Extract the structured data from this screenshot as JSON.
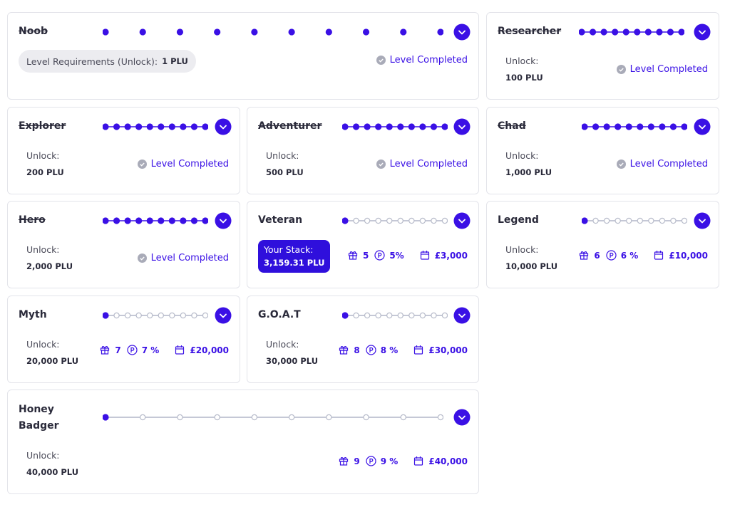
{
  "cards": [
    {
      "title": "Noob",
      "unlock_label": "Level Requirements (Unlock):",
      "unlock_value": "1 PLU",
      "status": "Level Completed"
    },
    {
      "title": "Researcher",
      "unlock_label": "Unlock:",
      "unlock_value": "100 PLU",
      "status": "Level Completed"
    },
    {
      "title": "Explorer",
      "unlock_label": "Unlock:",
      "unlock_value": "200 PLU",
      "status": "Level Completed"
    },
    {
      "title": "Adventurer",
      "unlock_label": "Unlock:",
      "unlock_value": "500 PLU",
      "status": "Level Completed"
    },
    {
      "title": "Chad",
      "unlock_label": "Unlock:",
      "unlock_value": "1,000 PLU",
      "status": "Level Completed"
    },
    {
      "title": "Hero",
      "unlock_label": "Unlock:",
      "unlock_value": "2,000 PLU",
      "status": "Level Completed"
    },
    {
      "title": "Veteran",
      "stack_label": "Your Stack:",
      "stack_value": "3,159.31 PLU",
      "gifts": "5",
      "percent": "5%",
      "cap": "£3,000"
    },
    {
      "title": "Legend",
      "unlock_label": "Unlock:",
      "unlock_value": "10,000 PLU",
      "gifts": "6",
      "percent": "6 %",
      "cap": "£10,000"
    },
    {
      "title": "Myth",
      "unlock_label": "Unlock:",
      "unlock_value": "20,000 PLU",
      "gifts": "7",
      "percent": "7 %",
      "cap": "£20,000"
    },
    {
      "title": "G.O.A.T",
      "unlock_label": "Unlock:",
      "unlock_value": "30,000 PLU",
      "gifts": "8",
      "percent": "8 %",
      "cap": "£30,000"
    },
    {
      "title": "Honey Badger",
      "unlock_label": "Unlock:",
      "unlock_value": "40,000 PLU",
      "gifts": "9",
      "percent": "9 %",
      "cap": "£40,000"
    }
  ]
}
